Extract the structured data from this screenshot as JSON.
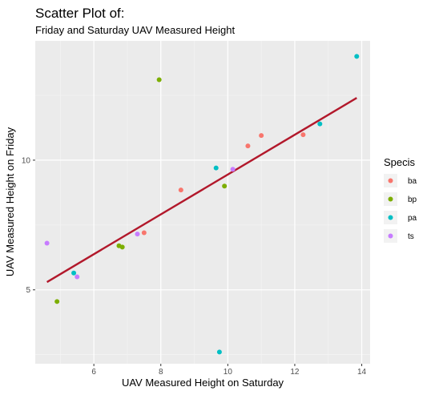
{
  "chart_data": {
    "type": "scatter",
    "title": "Scatter Plot of:",
    "subtitle": "Friday and Saturday UAV Measured Height",
    "xlabel": "UAV Measured Height on Saturday",
    "ylabel": "UAV Measured Height on Friday",
    "xlim": [
      4.25,
      14.25
    ],
    "ylim": [
      2.15,
      14.6
    ],
    "x_ticks": [
      6,
      8,
      10,
      12,
      14
    ],
    "y_ticks": [
      5,
      10
    ],
    "grid": true,
    "legend_title": "Specis",
    "legend_position": "right",
    "series": [
      {
        "name": "ba",
        "color": "#F8766D",
        "x": [
          7.5,
          8.6,
          10.6,
          11.0,
          12.25
        ],
        "y": [
          7.2,
          8.85,
          10.55,
          10.95,
          10.98
        ]
      },
      {
        "name": "bp",
        "color": "#7CAE00",
        "x": [
          4.9,
          6.75,
          6.85,
          7.95,
          9.9
        ],
        "y": [
          4.55,
          6.7,
          6.65,
          13.1,
          9.0
        ]
      },
      {
        "name": "pa",
        "color": "#00BFC4",
        "x": [
          5.4,
          9.65,
          9.75,
          12.75,
          13.85
        ],
        "y": [
          5.65,
          9.7,
          2.6,
          11.4,
          14.0
        ]
      },
      {
        "name": "ts",
        "color": "#C77CFF",
        "x": [
          4.6,
          5.5,
          7.3,
          10.15
        ],
        "y": [
          6.8,
          5.5,
          7.15,
          9.65
        ]
      }
    ],
    "trend_line": {
      "color": "#B2182B",
      "x": [
        4.6,
        13.85
      ],
      "y": [
        5.3,
        12.4
      ]
    }
  }
}
